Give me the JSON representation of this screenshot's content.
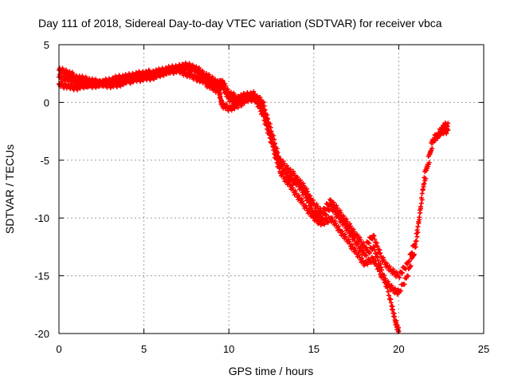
{
  "chart_data": {
    "type": "scatter",
    "title": "Day 111 of 2018, Sidereal Day-to-day VTEC variation (SDTVAR) for receiver vbca",
    "xlabel": "GPS time / hours",
    "ylabel": "SDTVAR / TECUs",
    "xlim": [
      0,
      25
    ],
    "ylim": [
      -20,
      5
    ],
    "xticks": [
      0,
      5,
      10,
      15,
      20,
      25
    ],
    "yticks": [
      -20,
      -15,
      -10,
      -5,
      0,
      5
    ],
    "grid": true,
    "marker": "+",
    "color": "#ff0000",
    "series": [
      {
        "name": "vbca",
        "x": [
          0.0,
          0.5,
          1.0,
          1.5,
          2.0,
          2.5,
          3.0,
          3.5,
          4.0,
          4.5,
          5.0,
          5.5,
          6.0,
          6.5,
          7.0,
          7.5,
          8.0,
          8.5,
          9.0,
          9.4,
          9.6,
          10.0,
          10.5,
          11.0,
          11.5,
          12.0,
          12.5,
          13.0,
          13.5,
          14.0,
          14.5,
          15.0,
          15.5,
          16.0,
          16.5,
          17.0,
          17.5,
          18.0,
          18.5,
          19.0,
          19.5,
          20.0,
          20.5,
          21.0,
          21.5,
          22.0,
          22.5,
          22.9
        ],
        "y": [
          2.8,
          2.6,
          2.2,
          2.0,
          1.8,
          1.7,
          1.9,
          2.1,
          2.2,
          2.4,
          2.5,
          2.6,
          2.7,
          2.9,
          3.0,
          3.1,
          2.8,
          2.2,
          1.6,
          1.2,
          1.5,
          0.3,
          0.0,
          0.4,
          0.6,
          0.0,
          -2.5,
          -5.0,
          -5.8,
          -6.5,
          -7.5,
          -8.8,
          -9.5,
          -8.5,
          -9.5,
          -10.5,
          -11.5,
          -12.5,
          -11.5,
          -13.5,
          -14.5,
          -15.0,
          -14.0,
          -12.0,
          -7.0,
          -3.5,
          -2.3,
          -1.8
        ]
      },
      {
        "name": "vbca",
        "x": [
          0.0,
          0.5,
          1.0,
          1.5,
          2.0,
          2.5,
          3.0,
          3.5,
          4.0,
          4.5,
          5.0,
          5.5,
          6.0,
          6.5,
          7.0,
          7.5,
          8.0,
          8.5,
          9.0,
          9.4,
          9.6,
          10.0,
          10.5,
          11.0,
          11.5,
          12.0,
          12.5,
          13.0,
          13.5,
          14.0,
          14.5,
          15.0,
          15.5,
          16.0,
          16.5,
          17.0,
          17.5,
          18.0,
          18.5,
          19.0,
          19.5,
          20.0,
          20.5,
          21.0,
          21.5,
          22.0,
          22.5,
          22.9
        ],
        "y": [
          1.6,
          1.4,
          1.3,
          1.5,
          1.7,
          1.6,
          1.5,
          1.6,
          1.8,
          2.0,
          2.1,
          2.2,
          2.5,
          2.7,
          2.8,
          2.5,
          2.2,
          1.8,
          1.3,
          1.0,
          -0.2,
          -0.5,
          -0.3,
          0.2,
          0.4,
          -1.0,
          -3.5,
          -6.0,
          -7.0,
          -8.0,
          -9.0,
          -10.0,
          -10.5,
          -10.0,
          -11.0,
          -12.0,
          -13.0,
          -14.0,
          -13.5,
          -15.0,
          -16.0,
          -16.5,
          -15.0,
          -12.5,
          -6.5,
          -3.2,
          -2.6,
          -2.4
        ]
      },
      {
        "name": "vbca",
        "x": [
          0.0,
          0.5,
          1.0,
          1.5,
          2.0,
          2.5,
          3.0,
          3.5,
          4.0,
          4.5,
          5.0,
          5.5,
          6.0,
          6.5,
          7.0,
          7.5,
          8.0,
          8.5,
          9.0,
          9.4,
          9.6,
          10.0,
          10.5,
          11.0,
          11.5,
          12.0,
          12.5,
          13.0,
          13.5,
          14.0,
          14.5,
          15.0,
          15.5,
          16.0,
          16.5,
          17.0,
          17.5,
          18.0,
          18.5,
          19.0,
          19.5,
          19.8,
          20.0
        ],
        "y": [
          2.2,
          2.0,
          1.8,
          1.6,
          1.5,
          1.6,
          1.8,
          1.7,
          2.0,
          2.2,
          2.3,
          2.4,
          2.6,
          2.8,
          3.0,
          3.2,
          3.0,
          2.5,
          2.0,
          1.6,
          1.8,
          0.8,
          0.4,
          0.6,
          0.7,
          -0.5,
          -3.0,
          -5.5,
          -6.5,
          -7.0,
          -8.0,
          -9.5,
          -10.0,
          -9.0,
          -10.0,
          -11.0,
          -12.2,
          -13.2,
          -12.5,
          -14.5,
          -17.0,
          -19.0,
          -19.8
        ]
      }
    ]
  }
}
